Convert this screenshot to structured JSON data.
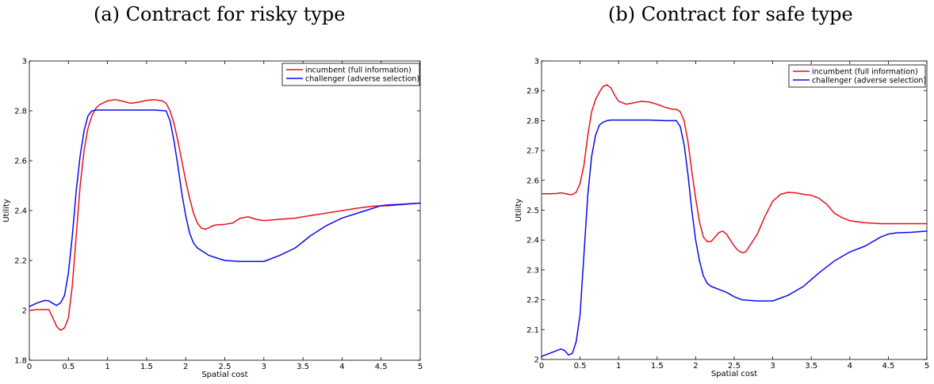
{
  "captions": {
    "a": "(a) Contract for risky type",
    "b": "(b) Contract for safe type"
  },
  "chart_data": [
    {
      "type": "line",
      "title": "",
      "xlabel": "Spatial cost",
      "ylabel": "Utility",
      "xlim": [
        0,
        5
      ],
      "ylim": [
        1.8,
        3
      ],
      "xticks": [
        0,
        0.5,
        1,
        1.5,
        2,
        2.5,
        3,
        3.5,
        4,
        4.5,
        5
      ],
      "yticks": [
        1.8,
        2,
        2.2,
        2.4,
        2.6,
        2.8,
        3
      ],
      "grid": false,
      "legend_position": "top-right",
      "series": [
        {
          "name": "incumbent (full information)",
          "color": "#e8111a",
          "x": [
            0,
            0.1,
            0.25,
            0.3,
            0.35,
            0.4,
            0.45,
            0.5,
            0.55,
            0.6,
            0.65,
            0.7,
            0.75,
            0.8,
            0.85,
            0.9,
            1.0,
            1.1,
            1.2,
            1.3,
            1.4,
            1.5,
            1.6,
            1.7,
            1.75,
            1.8,
            1.85,
            1.9,
            1.95,
            2.0,
            2.05,
            2.1,
            2.15,
            2.2,
            2.25,
            2.3,
            2.35,
            2.4,
            2.5,
            2.6,
            2.7,
            2.8,
            2.9,
            3.0,
            3.2,
            3.4,
            3.6,
            3.8,
            4.0,
            4.2,
            4.4,
            4.6,
            4.8,
            5.0
          ],
          "values": [
            2.0,
            2.003,
            2.003,
            1.97,
            1.935,
            1.92,
            1.93,
            1.97,
            2.1,
            2.3,
            2.5,
            2.64,
            2.73,
            2.78,
            2.81,
            2.825,
            2.84,
            2.845,
            2.838,
            2.83,
            2.835,
            2.842,
            2.845,
            2.84,
            2.83,
            2.8,
            2.75,
            2.68,
            2.6,
            2.52,
            2.45,
            2.39,
            2.35,
            2.33,
            2.325,
            2.332,
            2.34,
            2.343,
            2.345,
            2.35,
            2.37,
            2.375,
            2.365,
            2.36,
            2.365,
            2.37,
            2.38,
            2.39,
            2.4,
            2.41,
            2.418,
            2.42,
            2.425,
            2.43
          ]
        },
        {
          "name": "challenger (adverse selection)",
          "color": "#0a0af0",
          "x": [
            0,
            0.1,
            0.2,
            0.25,
            0.3,
            0.35,
            0.4,
            0.45,
            0.5,
            0.55,
            0.6,
            0.65,
            0.7,
            0.75,
            0.8,
            0.85,
            0.9,
            1.0,
            1.2,
            1.4,
            1.6,
            1.75,
            1.8,
            1.85,
            1.9,
            1.95,
            2.0,
            2.05,
            2.1,
            2.15,
            2.2,
            2.3,
            2.4,
            2.5,
            2.6,
            2.7,
            2.8,
            3.0,
            3.2,
            3.4,
            3.6,
            3.8,
            4.0,
            4.2,
            4.4,
            4.5,
            4.6,
            4.8,
            5.0
          ],
          "values": [
            2.015,
            2.03,
            2.04,
            2.038,
            2.028,
            2.02,
            2.03,
            2.06,
            2.15,
            2.3,
            2.48,
            2.62,
            2.72,
            2.78,
            2.8,
            2.803,
            2.803,
            2.803,
            2.803,
            2.803,
            2.803,
            2.8,
            2.76,
            2.68,
            2.58,
            2.47,
            2.38,
            2.31,
            2.27,
            2.25,
            2.24,
            2.22,
            2.21,
            2.2,
            2.198,
            2.196,
            2.196,
            2.196,
            2.22,
            2.25,
            2.3,
            2.34,
            2.37,
            2.39,
            2.41,
            2.42,
            2.423,
            2.426,
            2.43
          ]
        }
      ]
    },
    {
      "type": "line",
      "title": "",
      "xlabel": "Spatial cost",
      "ylabel": "Utility",
      "xlim": [
        0,
        5
      ],
      "ylim": [
        2,
        3
      ],
      "xticks": [
        0,
        0.5,
        1,
        1.5,
        2,
        2.5,
        3,
        3.5,
        4,
        4.5,
        5
      ],
      "yticks": [
        2,
        2.1,
        2.2,
        2.3,
        2.4,
        2.5,
        2.6,
        2.7,
        2.8,
        2.9,
        3
      ],
      "grid": false,
      "legend_position": "top-right",
      "series": [
        {
          "name": "incumbent (full information)",
          "color": "#e8111a",
          "x": [
            0,
            0.1,
            0.2,
            0.25,
            0.3,
            0.35,
            0.4,
            0.45,
            0.5,
            0.55,
            0.6,
            0.65,
            0.7,
            0.75,
            0.8,
            0.85,
            0.9,
            0.95,
            1.0,
            1.1,
            1.2,
            1.3,
            1.4,
            1.5,
            1.6,
            1.7,
            1.75,
            1.8,
            1.85,
            1.9,
            1.95,
            2.0,
            2.05,
            2.1,
            2.15,
            2.2,
            2.25,
            2.3,
            2.35,
            2.4,
            2.45,
            2.5,
            2.55,
            2.6,
            2.65,
            2.7,
            2.8,
            2.9,
            3.0,
            3.1,
            3.2,
            3.3,
            3.4,
            3.5,
            3.6,
            3.7,
            3.8,
            3.9,
            4.0,
            4.2,
            4.4,
            4.6,
            4.8,
            5.0
          ],
          "values": [
            2.555,
            2.555,
            2.556,
            2.558,
            2.556,
            2.553,
            2.552,
            2.56,
            2.59,
            2.65,
            2.75,
            2.83,
            2.87,
            2.895,
            2.915,
            2.92,
            2.91,
            2.885,
            2.865,
            2.855,
            2.86,
            2.865,
            2.862,
            2.855,
            2.845,
            2.838,
            2.838,
            2.83,
            2.8,
            2.73,
            2.63,
            2.54,
            2.46,
            2.41,
            2.395,
            2.395,
            2.41,
            2.425,
            2.43,
            2.42,
            2.4,
            2.38,
            2.365,
            2.358,
            2.36,
            2.38,
            2.42,
            2.48,
            2.53,
            2.553,
            2.56,
            2.558,
            2.553,
            2.55,
            2.54,
            2.52,
            2.49,
            2.475,
            2.465,
            2.458,
            2.455,
            2.455,
            2.455,
            2.455
          ]
        },
        {
          "name": "challenger (adverse selection)",
          "color": "#0a0af0",
          "x": [
            0,
            0.1,
            0.2,
            0.25,
            0.3,
            0.35,
            0.4,
            0.45,
            0.5,
            0.55,
            0.6,
            0.65,
            0.7,
            0.75,
            0.8,
            0.85,
            0.9,
            1.0,
            1.2,
            1.4,
            1.6,
            1.75,
            1.8,
            1.85,
            1.9,
            1.95,
            2.0,
            2.05,
            2.1,
            2.15,
            2.2,
            2.3,
            2.4,
            2.5,
            2.6,
            2.7,
            2.8,
            3.0,
            3.2,
            3.4,
            3.6,
            3.8,
            4.0,
            4.2,
            4.4,
            4.5,
            4.6,
            4.8,
            5.0
          ],
          "values": [
            2.01,
            2.02,
            2.03,
            2.035,
            2.03,
            2.015,
            2.02,
            2.06,
            2.15,
            2.35,
            2.55,
            2.68,
            2.75,
            2.785,
            2.795,
            2.8,
            2.802,
            2.802,
            2.802,
            2.802,
            2.8,
            2.8,
            2.78,
            2.72,
            2.62,
            2.5,
            2.4,
            2.33,
            2.28,
            2.255,
            2.245,
            2.235,
            2.225,
            2.21,
            2.2,
            2.198,
            2.196,
            2.196,
            2.215,
            2.245,
            2.29,
            2.33,
            2.36,
            2.38,
            2.41,
            2.42,
            2.424,
            2.426,
            2.43
          ]
        }
      ]
    }
  ]
}
